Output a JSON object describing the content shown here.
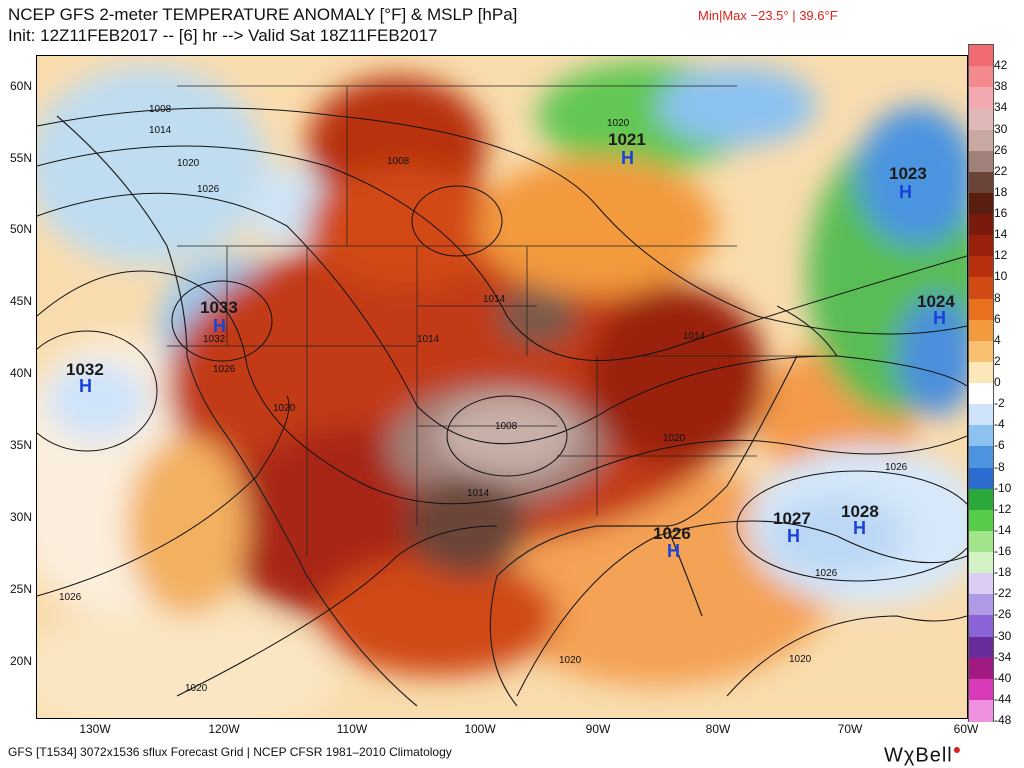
{
  "title_line1": "NCEP GFS 2-meter TEMPERATURE ANOMALY [°F] & MSLP [hPa]",
  "title_line2": "Init: 12Z11FEB2017 -- [6] hr --> Valid Sat 18Z11FEB2017",
  "minmax": "Min|Max −23.5° | 39.6°F",
  "footer": "GFS [T1534] 3072x1536 sflux Forecast Grid | NCEP CFSR 1981–2010 Climatology",
  "brand": "WχBell",
  "lat_labels": [
    "60N",
    "55N",
    "50N",
    "45N",
    "40N",
    "35N",
    "30N",
    "25N",
    "20N"
  ],
  "lon_labels": [
    "130W",
    "120W",
    "110W",
    "100W",
    "90W",
    "80W",
    "70W",
    "60W"
  ],
  "colorbar": {
    "labels": [
      "42",
      "38",
      "34",
      "30",
      "26",
      "22",
      "18",
      "16",
      "14",
      "12",
      "10",
      "8",
      "6",
      "4",
      "2",
      "0",
      "-2",
      "-4",
      "-6",
      "-8",
      "-10",
      "-12",
      "-14",
      "-16",
      "-18",
      "-22",
      "-26",
      "-30",
      "-34",
      "-40",
      "-44",
      "-48"
    ],
    "colors": [
      "#f06a72",
      "#f48a90",
      "#f4a8b0",
      "#e0b8b8",
      "#c8a8a0",
      "#a08078",
      "#6a4438",
      "#5a1e10",
      "#7a1a0c",
      "#9a200e",
      "#b8300e",
      "#d24a14",
      "#e8701e",
      "#f39a3e",
      "#f8c070",
      "#fbe7b8",
      "#ffffff",
      "#cfe4fa",
      "#8cc2f0",
      "#4c94e0",
      "#2c6cd0",
      "#2aa83a",
      "#56cc4a",
      "#a2e48a",
      "#d4f2c4",
      "#dccdf4",
      "#b09ae6",
      "#8a64d6",
      "#6a2c9a",
      "#a01a82",
      "#d83ab8",
      "#f090e0"
    ]
  },
  "pressure_centers": [
    {
      "value": "1021",
      "h": "H"
    },
    {
      "value": "1023",
      "h": "H"
    },
    {
      "value": "1033",
      "h": "H"
    },
    {
      "value": "1032",
      "h": "H"
    },
    {
      "value": "1024",
      "h": "H"
    },
    {
      "value": "1026",
      "h": "H"
    },
    {
      "value": "1027",
      "h": "H"
    },
    {
      "value": "1028",
      "h": "H"
    }
  ],
  "isobar_labels": [
    "1008",
    "1014",
    "1020",
    "1026",
    "1008",
    "1014",
    "1020",
    "1032",
    "1026",
    "1020",
    "1014",
    "1008",
    "1014",
    "1020",
    "1014",
    "1026",
    "1026",
    "1020",
    "1020",
    "1026",
    "1020"
  ]
}
